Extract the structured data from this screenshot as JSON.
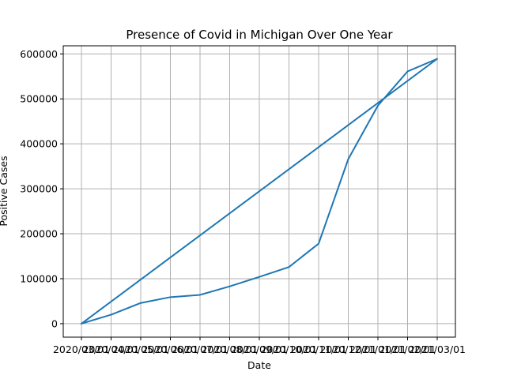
{
  "chart_data": {
    "type": "line",
    "title": "Presence of Covid in Michigan Over One Year",
    "xlabel": "Date",
    "ylabel": "Positive Cases",
    "x": [
      "2020/03/01",
      "2020/04/01",
      "2020/05/01",
      "2020/06/01",
      "2020/07/01",
      "2020/08/01",
      "2020/09/01",
      "2020/10/01",
      "2020/11/01",
      "2020/12/01",
      "2021/01/01",
      "2021/02/01",
      "2021/03/01"
    ],
    "series": [
      {
        "name": "",
        "points": [
          {
            "x": "2020/03/01",
            "y": 0
          },
          {
            "x": "2021/03/01",
            "y": 589000
          },
          {
            "x": "2021/02/01",
            "y": 561000
          },
          {
            "x": "2021/01/01",
            "y": 485000
          },
          {
            "x": "2020/12/01",
            "y": 366000
          },
          {
            "x": "2020/11/01",
            "y": 178000
          },
          {
            "x": "2020/10/01",
            "y": 126000
          },
          {
            "x": "2020/09/01",
            "y": 104000
          },
          {
            "x": "2020/08/01",
            "y": 83000
          },
          {
            "x": "2020/07/01",
            "y": 64000
          },
          {
            "x": "2020/06/01",
            "y": 59000
          },
          {
            "x": "2020/05/01",
            "y": 46000
          },
          {
            "x": "2020/04/01",
            "y": 20000
          },
          {
            "x": "2020/03/01",
            "y": 0
          }
        ],
        "color": "#1f77b4"
      }
    ],
    "yticks": [
      0,
      100000,
      200000,
      300000,
      400000,
      500000,
      600000
    ],
    "ylim": [
      -30000,
      618000
    ],
    "grid": true,
    "legend": "none"
  }
}
